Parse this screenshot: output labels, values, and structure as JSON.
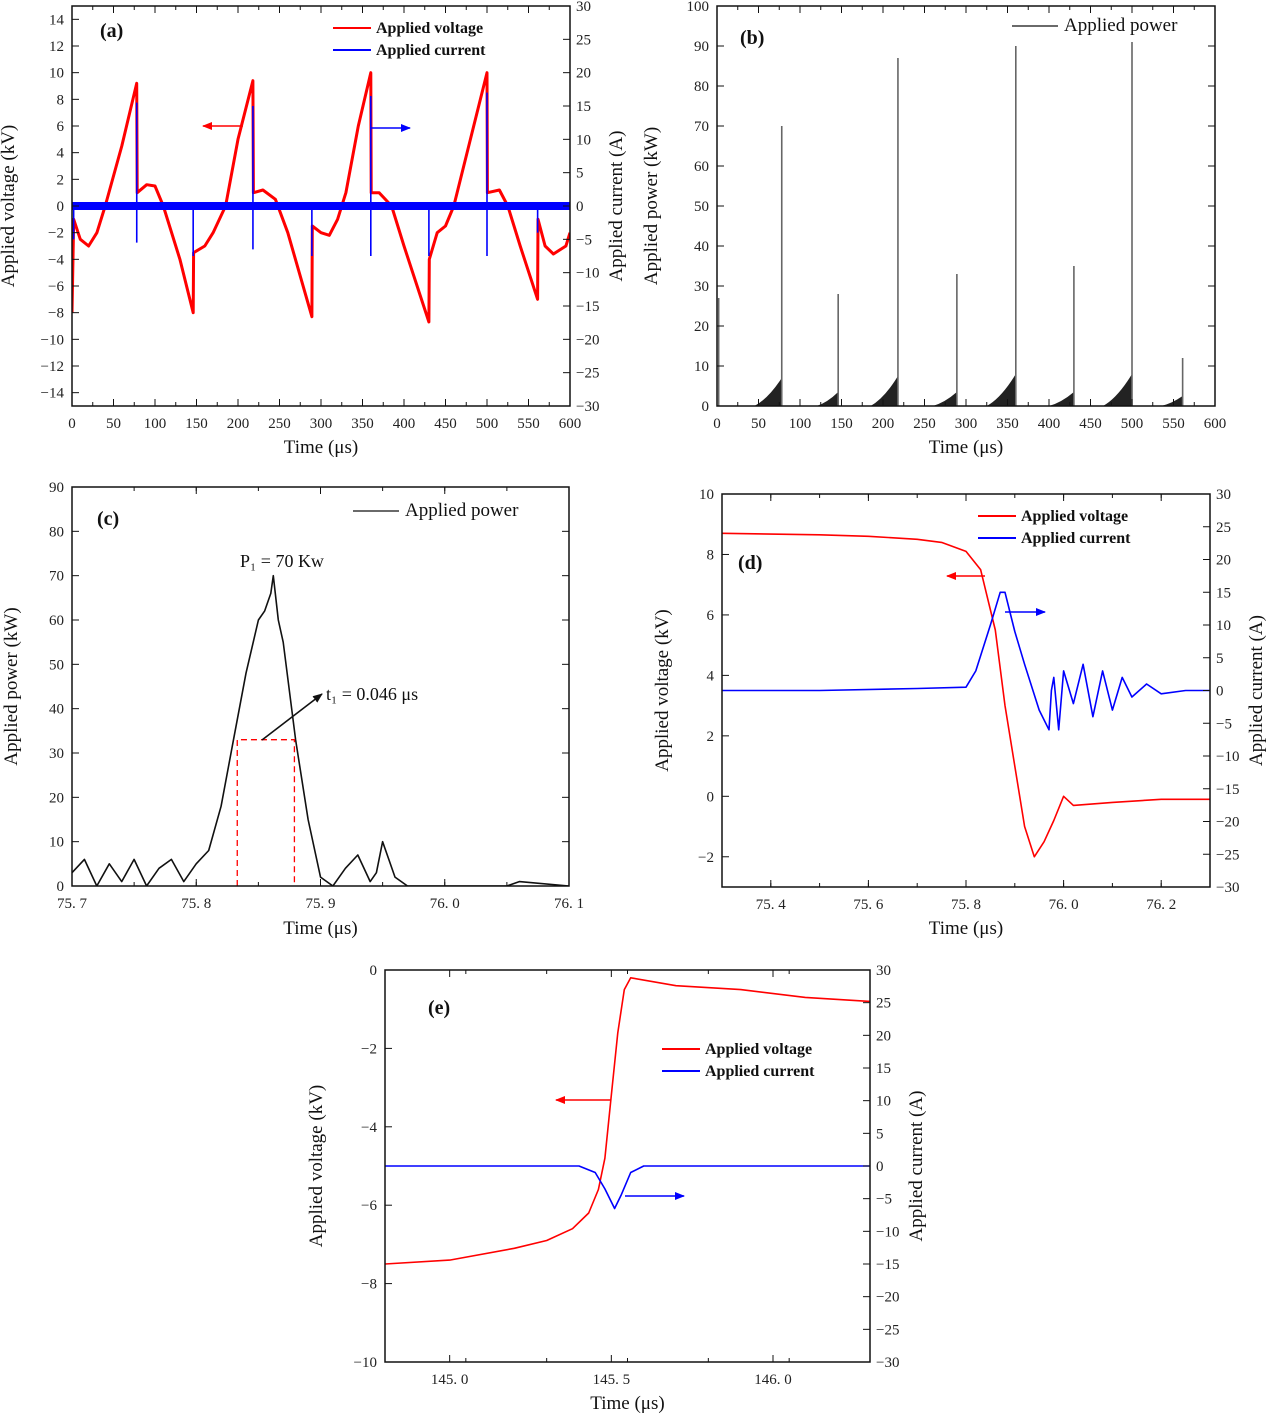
{
  "chart_data": [
    {
      "id": "a",
      "type": "line",
      "panel_label": "(a)",
      "xlabel": "Time (μs)",
      "ylabel": "Applied voltage (kV)",
      "y2label": "Applied current (A)",
      "xlim": [
        0,
        600
      ],
      "ylim": [
        -15,
        15
      ],
      "y2lim": [
        -30,
        30
      ],
      "xticks": [
        0,
        50,
        100,
        150,
        200,
        250,
        300,
        350,
        400,
        450,
        500,
        550,
        600
      ],
      "yticks": [
        -14,
        -12,
        -10,
        -8,
        -6,
        -4,
        -2,
        0,
        2,
        4,
        6,
        8,
        10,
        12,
        14
      ],
      "y2ticks": [
        -30,
        -25,
        -20,
        -15,
        -10,
        -5,
        0,
        5,
        10,
        15,
        20,
        25,
        30
      ],
      "legend": [
        {
          "name": "Applied voltage",
          "color": "#ff0000"
        },
        {
          "name": "Applied  current",
          "color": "#0000ff"
        }
      ],
      "series": [
        {
          "name": "Applied voltage",
          "axis": "left",
          "color": "#ff0000",
          "x": [
            0,
            2,
            10,
            20,
            30,
            40,
            60,
            78,
            78.5,
            90,
            100,
            110,
            130,
            146,
            146.5,
            160,
            170,
            185,
            200,
            218,
            218.5,
            230,
            245,
            260,
            289,
            289.5,
            300,
            310,
            320,
            330,
            345,
            360,
            360.5,
            370,
            385,
            400,
            430,
            430.5,
            440,
            450,
            460,
            480,
            500,
            500.5,
            515,
            525,
            540,
            561,
            561.5,
            570,
            580,
            595,
            600
          ],
          "y": [
            -8,
            -1,
            -2.5,
            -3,
            -2,
            0,
            4.5,
            9.2,
            1,
            1.6,
            1.5,
            0,
            -4,
            -8,
            -3.5,
            -3,
            -2,
            0,
            5,
            9.4,
            1,
            1.2,
            0.5,
            -2,
            -8.3,
            -1.5,
            -2,
            -2.2,
            -1,
            1,
            6,
            10,
            1,
            1,
            0,
            -3,
            -8.7,
            -4,
            -2,
            -1.5,
            0,
            5,
            10,
            1,
            1.2,
            0,
            -3,
            -7,
            -1,
            -3,
            -3.6,
            -3,
            -2
          ]
        },
        {
          "name": "Applied  current",
          "axis": "right",
          "color": "#0000ff",
          "baseline": 0,
          "spikes_t": [
            2,
            78,
            146,
            218,
            289,
            360,
            430,
            500,
            561
          ],
          "spikes_max": [
            0,
            15.5,
            0,
            15,
            0,
            16.5,
            0,
            17,
            0
          ],
          "spikes_min": [
            -5,
            -5.5,
            -7.5,
            -6.5,
            -7.5,
            -7.5,
            -7.5,
            -7.5,
            -4
          ]
        }
      ]
    },
    {
      "id": "b",
      "type": "line",
      "panel_label": "(b)",
      "xlabel": "Time (μs)",
      "ylabel": "Applied power (kW)",
      "xlim": [
        0,
        600
      ],
      "ylim": [
        0,
        100
      ],
      "xticks": [
        0,
        50,
        100,
        150,
        200,
        250,
        300,
        350,
        400,
        450,
        500,
        550,
        600
      ],
      "yticks": [
        0,
        10,
        20,
        30,
        40,
        50,
        60,
        70,
        80,
        90,
        100
      ],
      "legend": [
        {
          "name": "Applied power",
          "color": "#111111"
        }
      ],
      "series": [
        {
          "name": "Applied power",
          "color": "#111111",
          "spikes_t": [
            2,
            78,
            146,
            218,
            289,
            360,
            430,
            500,
            561
          ],
          "spikes_peak": [
            27,
            70,
            28,
            87,
            33,
            90,
            35,
            91,
            12
          ],
          "hump_start": [
            45,
            120,
            185,
            260,
            325,
            400,
            465,
            535
          ],
          "hump_end": [
            78,
            146,
            218,
            289,
            360,
            430,
            500,
            561
          ],
          "hump_peak": [
            7,
            3.5,
            7.5,
            3.5,
            8,
            3.5,
            8,
            2.5
          ]
        }
      ]
    },
    {
      "id": "c",
      "type": "line",
      "panel_label": "(c)",
      "xlabel": "Time (μs)",
      "ylabel": "Applied power (kW)",
      "xlim": [
        75.7,
        76.1
      ],
      "ylim": [
        0,
        90
      ],
      "xticks": [
        75.7,
        75.8,
        75.9,
        76.0,
        76.1
      ],
      "xticklabels": [
        "75. 7",
        "75. 8",
        "75. 9",
        "76. 0",
        "76. 1"
      ],
      "yticks": [
        0,
        10,
        20,
        30,
        40,
        50,
        60,
        70,
        80,
        90
      ],
      "legend": [
        {
          "name": "Applied power",
          "color": "#111111"
        }
      ],
      "annotations": {
        "peak": "P₁ = 70 Kw",
        "width": "t₁ = 0.046 μs",
        "half_level": 33,
        "half_start": 75.833,
        "half_end": 75.879
      },
      "series": [
        {
          "name": "Applied power",
          "color": "#111111",
          "x": [
            75.7,
            75.71,
            75.72,
            75.73,
            75.74,
            75.75,
            75.76,
            75.77,
            75.78,
            75.79,
            75.8,
            75.81,
            75.82,
            75.83,
            75.84,
            75.85,
            75.855,
            75.86,
            75.862,
            75.866,
            75.87,
            75.88,
            75.89,
            75.9,
            75.91,
            75.92,
            75.93,
            75.94,
            75.945,
            75.95,
            75.955,
            75.96,
            75.97,
            76.0,
            76.05,
            76.06,
            76.1
          ],
          "y": [
            3,
            6,
            0,
            5,
            1,
            6,
            0,
            4,
            6,
            1,
            5,
            8,
            18,
            33,
            48,
            60,
            62,
            66,
            70,
            60,
            55,
            33,
            15,
            2,
            0,
            4,
            7,
            1,
            3,
            10,
            6,
            2,
            0,
            0,
            0,
            1,
            0
          ]
        }
      ]
    },
    {
      "id": "d",
      "type": "line",
      "panel_label": "(d)",
      "xlabel": "Time (μs)",
      "ylabel": "Applied voltage (kV)",
      "y2label": "Applied current (A)",
      "xlim": [
        75.3,
        76.3
      ],
      "ylim": [
        -3,
        10
      ],
      "y2lim": [
        -30,
        30
      ],
      "xticks": [
        75.4,
        75.6,
        75.8,
        76.0,
        76.2
      ],
      "xticklabels": [
        "75. 4",
        "75. 6",
        "75. 8",
        "76. 0",
        "76. 2"
      ],
      "yticks": [
        -2,
        0,
        2,
        4,
        6,
        8,
        10
      ],
      "y2ticks": [
        -30,
        -25,
        -20,
        -15,
        -10,
        -5,
        0,
        5,
        10,
        15,
        20,
        25,
        30
      ],
      "legend": [
        {
          "name": "Applied voltage",
          "color": "#ff0000"
        },
        {
          "name": "Applied  current",
          "color": "#0000ff"
        }
      ],
      "series": [
        {
          "name": "Applied voltage",
          "axis": "left",
          "color": "#ff0000",
          "x": [
            75.3,
            75.5,
            75.6,
            75.7,
            75.75,
            75.8,
            75.83,
            75.86,
            75.88,
            75.9,
            75.92,
            75.94,
            75.96,
            75.98,
            76.0,
            76.02,
            76.1,
            76.2,
            76.3
          ],
          "y": [
            8.7,
            8.65,
            8.6,
            8.5,
            8.4,
            8.1,
            7.5,
            5.5,
            3,
            1,
            -1,
            -2,
            -1.5,
            -0.8,
            0,
            -0.3,
            -0.2,
            -0.1,
            -0.1
          ]
        },
        {
          "name": "Applied  current",
          "axis": "right",
          "color": "#0000ff",
          "x": [
            75.3,
            75.5,
            75.7,
            75.8,
            75.82,
            75.85,
            75.87,
            75.88,
            75.9,
            75.92,
            75.95,
            75.97,
            75.975,
            75.98,
            75.99,
            76.0,
            76.02,
            76.04,
            76.06,
            76.08,
            76.1,
            76.12,
            76.14,
            76.17,
            76.2,
            76.25,
            76.3
          ],
          "y": [
            0,
            0,
            0.3,
            0.5,
            3,
            10,
            15,
            15,
            9,
            4,
            -3,
            -6,
            0,
            2,
            -6,
            3,
            -2,
            4,
            -4,
            3,
            -3,
            2,
            -1,
            1,
            -0.5,
            0,
            0
          ]
        }
      ]
    },
    {
      "id": "e",
      "type": "line",
      "panel_label": "(e)",
      "xlabel": "Time (μs)",
      "ylabel": "Applied voltage (kV)",
      "y2label": "Applied current (A)",
      "xlim": [
        144.8,
        146.3
      ],
      "ylim": [
        -10,
        0
      ],
      "y2lim": [
        -30,
        30
      ],
      "xticks": [
        145.0,
        145.5,
        146.0
      ],
      "xticklabels": [
        "145. 0",
        "145. 5",
        "146. 0"
      ],
      "yticks": [
        -10,
        -8,
        -6,
        -4,
        -2,
        0
      ],
      "y2ticks": [
        -30,
        -25,
        -20,
        -15,
        -10,
        -5,
        0,
        5,
        10,
        15,
        20,
        25,
        30
      ],
      "legend": [
        {
          "name": "Applied voltage",
          "color": "#ff0000"
        },
        {
          "name": "Applied  current",
          "color": "#0000ff"
        }
      ],
      "series": [
        {
          "name": "Applied voltage",
          "axis": "left",
          "color": "#ff0000",
          "x": [
            144.8,
            145.0,
            145.2,
            145.3,
            145.38,
            145.43,
            145.46,
            145.48,
            145.5,
            145.52,
            145.54,
            145.56,
            145.7,
            145.9,
            146.1,
            146.3
          ],
          "y": [
            -7.5,
            -7.4,
            -7.1,
            -6.9,
            -6.6,
            -6.2,
            -5.6,
            -4.8,
            -3.2,
            -1.6,
            -0.5,
            -0.2,
            -0.4,
            -0.5,
            -0.7,
            -0.8
          ]
        },
        {
          "name": "Applied  current",
          "axis": "right",
          "color": "#0000ff",
          "x": [
            144.8,
            145.2,
            145.4,
            145.45,
            145.48,
            145.51,
            145.53,
            145.56,
            145.6,
            146.0,
            146.3
          ],
          "y": [
            0,
            0,
            0,
            -1,
            -3.5,
            -6.5,
            -4.5,
            -1,
            0,
            0,
            0
          ]
        }
      ]
    }
  ]
}
